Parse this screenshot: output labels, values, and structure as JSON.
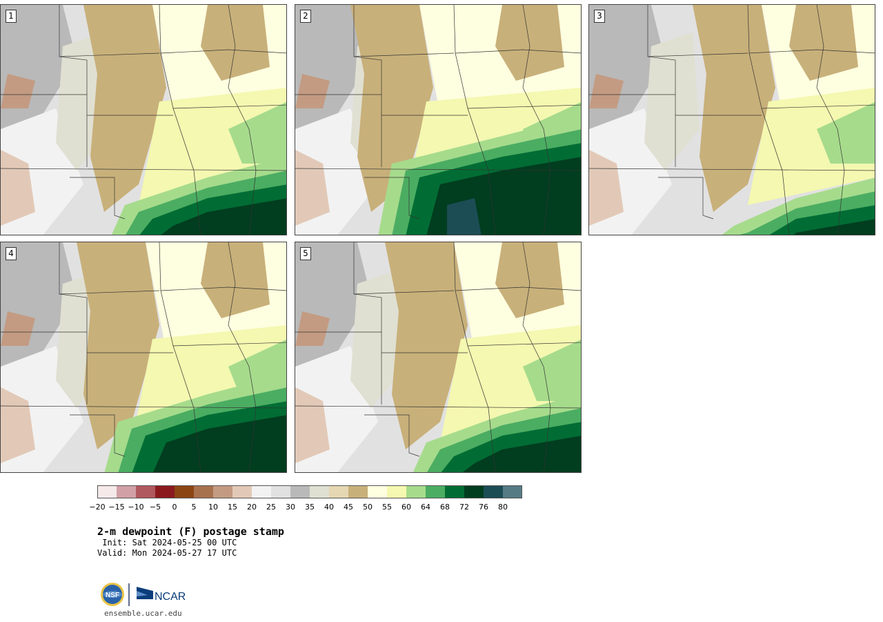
{
  "product": {
    "title": "2-m dewpoint (F) postage stamp",
    "init": " Init: Sat 2024-05-25 00 UTC",
    "valid": "Valid: Mon 2024-05-27 17 UTC"
  },
  "colorbar": {
    "colors": [
      "#f5e9ea",
      "#d1a0a6",
      "#b0595f",
      "#8b1a1f",
      "#8b4513",
      "#a8714e",
      "#c39b82",
      "#e2c9b7",
      "#f2f2f2",
      "#e1e1e1",
      "#b9b9b9",
      "#e0e0d2",
      "#e4d7b2",
      "#c8b07a",
      "#fefee0",
      "#f4f8b0",
      "#a6db8c",
      "#4bad62",
      "#016d34",
      "#013d1f",
      "#1c4d55",
      "#567b84"
    ],
    "tick_labels": [
      "−20",
      "−15",
      "−10",
      "−5",
      "0",
      "5",
      "10",
      "15",
      "20",
      "25",
      "30",
      "35",
      "40",
      "45",
      "50",
      "55",
      "60",
      "64",
      "68",
      "72",
      "76",
      "80"
    ]
  },
  "panels": [
    {
      "label": "1"
    },
    {
      "label": "2"
    },
    {
      "label": "3"
    },
    {
      "label": "4"
    },
    {
      "label": "5"
    }
  ],
  "logo": {
    "nsf_text": "NSF",
    "ncar_text": "NCAR"
  },
  "footer_url": "ensemble.ucar.edu"
}
